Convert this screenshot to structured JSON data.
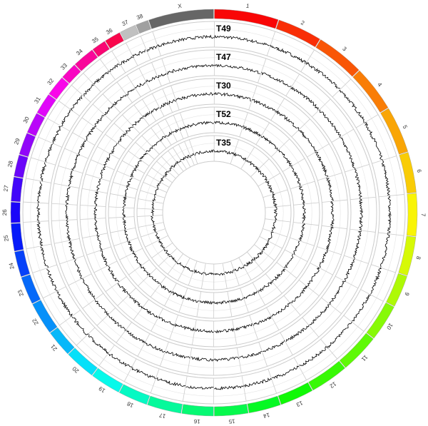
{
  "chromosomes": [
    "1",
    "2",
    "3",
    "4",
    "5",
    "6",
    "7",
    "8",
    "9",
    "10",
    "11",
    "12",
    "13",
    "14",
    "15",
    "16",
    "17",
    "18",
    "19",
    "20",
    "21",
    "22",
    "23",
    "24",
    "25",
    "26",
    "27",
    "28",
    "29",
    "30",
    "31",
    "32",
    "33",
    "34",
    "35",
    "36",
    "37",
    "38",
    "X"
  ],
  "tracks": [
    "T49",
    "T47",
    "T30",
    "T52",
    "T35"
  ]
}
